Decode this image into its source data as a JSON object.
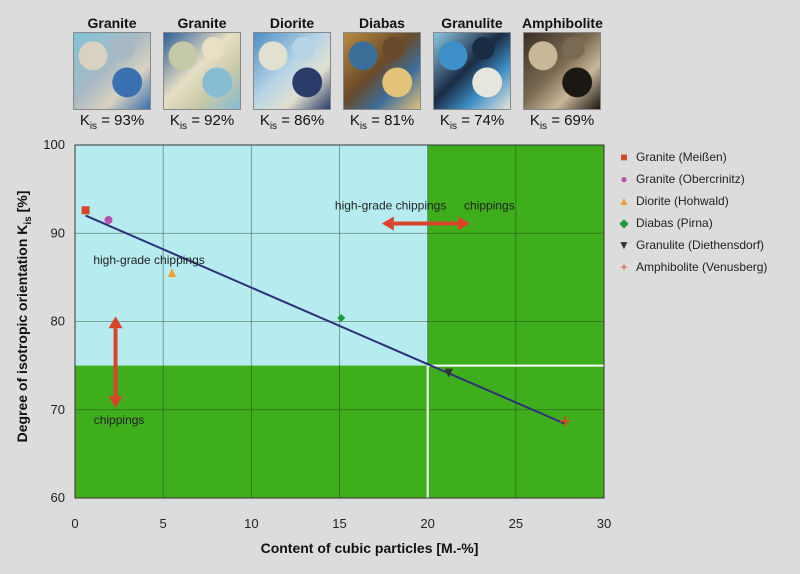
{
  "samples": [
    {
      "name": "Granite",
      "k_label": "K",
      "k_sub": "is",
      "k_value": "= 93%",
      "colors": [
        "#7fc3d9",
        "#d9d2c0",
        "#3a6fb0",
        "#a9b9c4"
      ]
    },
    {
      "name": "Granite",
      "k_label": "K",
      "k_sub": "is",
      "k_value": "= 92%",
      "colors": [
        "#2d5f9a",
        "#c6c9a8",
        "#86bcd4",
        "#e8dfc4"
      ]
    },
    {
      "name": "Diorite",
      "k_label": "K",
      "k_sub": "is",
      "k_value": "= 86%",
      "colors": [
        "#4e8ec4",
        "#e2e0d0",
        "#2a3c6a",
        "#b7d4e6"
      ]
    },
    {
      "name": "Diabas",
      "k_label": "K",
      "k_sub": "is",
      "k_value": "= 81%",
      "colors": [
        "#b98a3e",
        "#3c6e9a",
        "#e3c27a",
        "#6a4a2a"
      ]
    },
    {
      "name": "Granulite",
      "k_label": "K",
      "k_sub": "is",
      "k_value": "= 74%",
      "colors": [
        "#8cc7e2",
        "#3d8fc7",
        "#e6e6dc",
        "#1a2b44"
      ]
    },
    {
      "name": "Amphibolite",
      "k_label": "K",
      "k_sub": "is",
      "k_value": "= 69%",
      "colors": [
        "#3a3026",
        "#c9b79a",
        "#1b1712",
        "#7a6a52"
      ]
    }
  ],
  "chart_data": {
    "type": "scatter",
    "xlabel": "Content of cubic particles [M.-%]",
    "ylabel": "Degree of isotropic orientation K",
    "ylabel_sub": "is",
    "ylabel_unit": " [%]",
    "xlim": [
      0,
      30
    ],
    "ylim": [
      60,
      100
    ],
    "xticks": [
      0,
      5,
      10,
      15,
      20,
      25,
      30
    ],
    "yticks": [
      60,
      70,
      80,
      90,
      100
    ],
    "grid": true,
    "legend_position": "right",
    "series": [
      {
        "name": "Granite (Meißen)",
        "marker": "square",
        "color": "#d9442a",
        "symbol": "■",
        "x": [
          0.6
        ],
        "y": [
          92.6
        ]
      },
      {
        "name": "Granite (Obercrinitz)",
        "marker": "circle",
        "color": "#b84fae",
        "symbol": "●",
        "x": [
          1.9
        ],
        "y": [
          91.5
        ]
      },
      {
        "name": "Diorite (Hohwald)",
        "marker": "triangle-up",
        "color": "#f0a030",
        "symbol": "▲",
        "x": [
          5.5
        ],
        "y": [
          85.5
        ]
      },
      {
        "name": "Diabas (Pirna)",
        "marker": "diamond",
        "color": "#1a9a3a",
        "symbol": "◆",
        "x": [
          15.1
        ],
        "y": [
          80.4
        ]
      },
      {
        "name": "Granulite (Diethensdorf)",
        "marker": "triangle-down",
        "color": "#333333",
        "symbol": "▼",
        "x": [
          21.2
        ],
        "y": [
          74.2
        ]
      },
      {
        "name": "Amphibolite (Venusberg)",
        "marker": "plus",
        "color": "#d9442a",
        "symbol": "+",
        "x": [
          27.8
        ],
        "y": [
          68.7
        ]
      }
    ],
    "trendline": {
      "x": [
        0.6,
        27.8
      ],
      "y": [
        92.0,
        68.4
      ],
      "color": "#2f2f7a"
    },
    "regions": {
      "threshold_x": 20,
      "threshold_y": 75,
      "highgrade_color": "#b6ecf0",
      "chipping_color": "#3fae1c"
    },
    "annotations": [
      {
        "text": "high-grade chippings",
        "x": 17.9,
        "y": 92.7
      },
      {
        "text": "chippings",
        "x": 23.5,
        "y": 92.7
      },
      {
        "text": "high-grade chippings",
        "x": 4.2,
        "y": 86.5
      },
      {
        "text": "chippings",
        "x": 2.5,
        "y": 68.4
      }
    ]
  }
}
